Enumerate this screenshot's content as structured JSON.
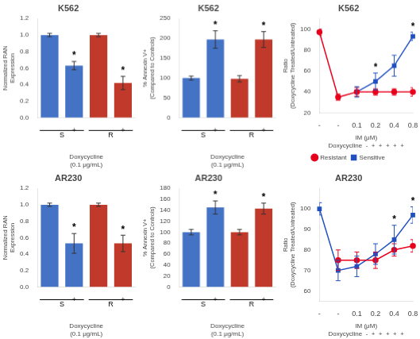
{
  "chart_data": [
    {
      "type": "bar",
      "title": "K562",
      "categories": [
        "-",
        "+",
        "-",
        "+"
      ],
      "values": [
        1.0,
        0.63,
        1.0,
        0.42
      ],
      "errors": [
        0.02,
        0.05,
        0.02,
        0.08
      ],
      "colors": [
        "#4472C4",
        "#4472C4",
        "#C0392B",
        "#C0392B"
      ],
      "xlabel": "Doxycycline\n(0.1 μg/mL)",
      "ylabel": "Normalized RAN\nExpression",
      "ylim": [
        0,
        1.2
      ],
      "yticks": [
        {
          "value": 0,
          "label": "0.0"
        },
        0.2,
        0.4,
        0.6,
        0.8,
        {
          "value": 1.0,
          "label": "1.0"
        },
        1.2
      ],
      "grid": false,
      "annotations": [
        {
          "text": "*",
          "x": 1
        },
        {
          "text": "*",
          "x": 3
        },
        {
          "text": "S",
          "x": [
            0,
            1
          ]
        },
        {
          "text": "R",
          "x": [
            2,
            3
          ]
        }
      ]
    },
    {
      "type": "bar",
      "title": "AR230",
      "categories": [
        "-",
        "+",
        "-",
        "+"
      ],
      "values": [
        1.0,
        0.53,
        1.0,
        0.53
      ],
      "errors": [
        0.02,
        0.12,
        0.02,
        0.1
      ],
      "colors": [
        "#4472C4",
        "#4472C4",
        "#C0392B",
        "#C0392B"
      ],
      "xlabel": "Doxycycline\n(0.1 μg/mL)",
      "ylabel": "Normalized RAN\nExpression",
      "ylim": [
        0,
        1.2
      ],
      "yticks": [
        {
          "value": 0,
          "label": "0.0"
        },
        0.2,
        0.4,
        0.6,
        0.8,
        {
          "value": 1.0,
          "label": "1.0"
        },
        1.2
      ],
      "grid": false,
      "annotations": [
        {
          "text": "*",
          "x": 1
        },
        {
          "text": "*",
          "x": 3
        },
        {
          "text": "S",
          "x": [
            0,
            1
          ]
        },
        {
          "text": "R",
          "x": [
            2,
            3
          ]
        }
      ]
    },
    {
      "type": "bar",
      "title": "K562",
      "categories": [
        "-",
        "+",
        "-",
        "+"
      ],
      "values": [
        100,
        197,
        98,
        197
      ],
      "errors": [
        5,
        22,
        8,
        20
      ],
      "colors": [
        "#4472C4",
        "#4472C4",
        "#C0392B",
        "#C0392B"
      ],
      "xlabel": "Doxycycline\n(0.1 μg/mL)",
      "ylabel": "% Annexin V+\n(Compared to Controls)",
      "ylim": [
        0,
        250
      ],
      "yticks": [
        0,
        50,
        100,
        150,
        200,
        250
      ],
      "grid": false,
      "annotations": [
        {
          "text": "*",
          "x": 1
        },
        {
          "text": "*",
          "x": 3
        },
        {
          "text": "S",
          "x": [
            0,
            1
          ]
        },
        {
          "text": "R",
          "x": [
            2,
            3
          ]
        }
      ]
    },
    {
      "type": "bar",
      "title": "AR230",
      "categories": [
        "-",
        "+",
        "-",
        "+"
      ],
      "values": [
        100,
        145,
        100,
        143
      ],
      "errors": [
        5,
        12,
        5,
        10
      ],
      "colors": [
        "#4472C4",
        "#4472C4",
        "#C0392B",
        "#C0392B"
      ],
      "xlabel": "Doxycycline\n(0.1 μg/mL)",
      "ylabel": "% Annexin V+\n(Compared to Controls)",
      "ylim": [
        0,
        180
      ],
      "yticks": [
        0,
        20,
        40,
        60,
        80,
        100,
        120,
        140,
        160,
        180
      ],
      "grid": false,
      "annotations": [
        {
          "text": "*",
          "x": 1
        },
        {
          "text": "*",
          "x": 3
        },
        {
          "text": "S",
          "x": [
            0,
            1
          ]
        },
        {
          "text": "R",
          "x": [
            2,
            3
          ]
        }
      ]
    },
    {
      "type": "line",
      "title": "K562",
      "categories": [
        "-",
        "-",
        "0.1",
        "0.2",
        "0.4",
        "0.8"
      ],
      "series": [
        {
          "name": "Resistant",
          "color": "#E8001C",
          "marker": "circle",
          "values": [
            97,
            35,
            40,
            40,
            40,
            40
          ],
          "errors": [
            3,
            3,
            4,
            3,
            3,
            4
          ]
        },
        {
          "name": "Sensitive",
          "color": "#2050C0",
          "marker": "square",
          "values": [
            null,
            null,
            40,
            50,
            65,
            93
          ],
          "errors": [
            null,
            null,
            5,
            8,
            10,
            4
          ]
        }
      ],
      "xlabel": "IM (μM)",
      "ylabel": "Ratio\n(Doxycycline Treated/Untreated)",
      "ylim": [
        20,
        110
      ],
      "yticks": [
        20,
        40,
        60,
        80,
        100
      ],
      "grid": false,
      "legend": "bottom",
      "annotations": [
        {
          "text": "Doxycycline  -  +  +  +  +  +"
        },
        {
          "text": "*",
          "x": 3
        },
        {
          "text": "*",
          "x": 5
        }
      ]
    },
    {
      "type": "line",
      "title": "AR230",
      "categories": [
        "-",
        "-",
        "0.1",
        "0.2",
        "0.4",
        "0.8"
      ],
      "series": [
        {
          "name": "Resistant",
          "color": "#E8001C",
          "marker": "circle",
          "values": [
            null,
            75,
            75,
            75,
            80,
            82
          ],
          "errors": [
            null,
            5,
            4,
            4,
            3,
            3
          ]
        },
        {
          "name": "Sensitive",
          "color": "#2050C0",
          "marker": "square",
          "values": [
            100,
            70,
            72,
            78,
            85,
            97
          ],
          "errors": [
            3,
            5,
            5,
            5,
            7,
            4
          ]
        }
      ],
      "xlabel": "IM (μM)",
      "ylabel": "Ratio\n(Doxycycline Treated/Untreated)",
      "ylim": [
        55,
        110
      ],
      "yticks": [
        60,
        70,
        80,
        90,
        100
      ],
      "grid": false,
      "annotations": [
        {
          "text": "Doxycycline  -  +  +  +  +  +"
        },
        {
          "text": "*",
          "x": 4
        },
        {
          "text": "*",
          "x": 5
        }
      ]
    }
  ]
}
